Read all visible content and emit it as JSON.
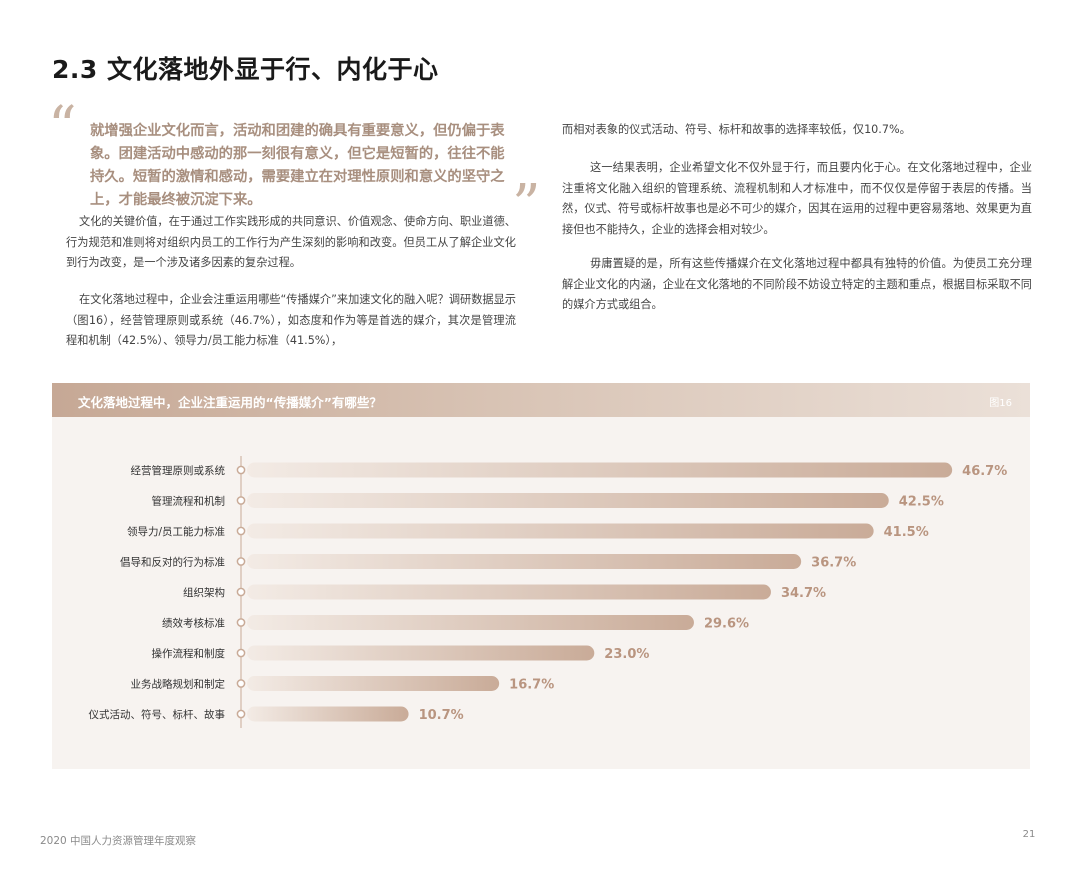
{
  "section_title": "2.3 文化落地外显于行、内化于心",
  "quote": {
    "open_mark": "“",
    "close_mark": "”",
    "text": "就增强企业文化而言，活动和团建的确具有重要意义，但仍偏于表象。团建活动中感动的那一刻很有意义，但它是短暂的，往往不能持久。短暂的激情和感动，需要建立在对理性原则和意义的坚守之上，才能最终被沉淀下来。"
  },
  "left_paragraphs": [
    "文化的关键价值，在于通过工作实践形成的共同意识、价值观念、使命方向、职业道德、行为规范和准则将对组织内员工的工作行为产生深刻的影响和改变。但员工从了解企业文化到行为改变，是一个涉及诸多因素的复杂过程。",
    "在文化落地过程中，企业会注重运用哪些“传播媒介”来加速文化的融入呢？调研数据显示（图16），经营管理原则或系统（46.7%），如态度和作为等是首选的媒介，其次是管理流程和机制（42.5%）、领导力/员工能力标准（41.5%），"
  ],
  "right_paragraphs": [
    "而相对表象的仪式活动、符号、标杆和故事的选择率较低，仅10.7%。",
    "这一结果表明，企业希望文化不仅外显于行，而且要内化于心。在文化落地过程中，企业注重将文化融入组织的管理系统、流程机制和人才标准中，而不仅仅是停留于表层的传播。当然，仪式、符号或标杆故事也是必不可少的媒介，因其在运用的过程中更容易落地、效果更为直接但也不能持久，企业的选择会相对较少。",
    "毋庸置疑的是，所有这些传播媒介在文化落地过程中都具有独特的价值。为使员工充分理解企业文化的内涵，企业在文化落地的不同阶段不妨设立特定的主题和重点，根据目标采取不同的媒介方式或组合。"
  ],
  "chart_data": {
    "type": "bar",
    "orientation": "horizontal",
    "title": "文化落地过程中，企业注重运用的“传播媒介”有哪些？",
    "figure_label": "图16",
    "categories": [
      "经营管理原则或系统",
      "管理流程和机制",
      "领导力/员工能力标准",
      "倡导和反对的行为标准",
      "组织架构",
      "绩效考核标准",
      "操作流程和制度",
      "业务战略规划和制定",
      "仪式活动、符号、标杆、故事"
    ],
    "values": [
      46.7,
      42.5,
      41.5,
      36.7,
      34.7,
      29.6,
      23.0,
      16.7,
      10.7
    ],
    "value_labels": [
      "46.7%",
      "42.5%",
      "41.5%",
      "36.7%",
      "34.7%",
      "29.6%",
      "23.0%",
      "16.7%",
      "10.7%"
    ],
    "unit": "%",
    "xlim": [
      0,
      50
    ],
    "colors": {
      "bar_start": "#f3ebe5",
      "bar_end": "#c9ab98",
      "label": "#b99580",
      "axis": "#c9ab98"
    }
  },
  "footer": {
    "report_name": "2020 中国人力资源管理年度观察",
    "page_number": "21"
  }
}
